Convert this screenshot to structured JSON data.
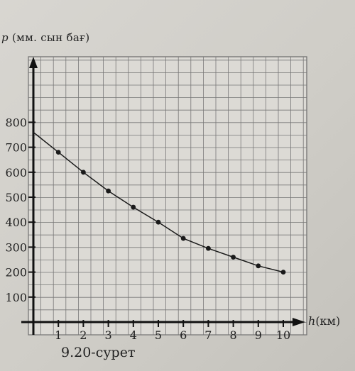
{
  "chart_data": {
    "type": "line",
    "ylabel_var": "p",
    "ylabel_unit": "(мм. сын бағ)",
    "xlabel_var": "h",
    "xlabel_unit": "(км)",
    "caption": "9.20-сурет",
    "x_ticks": [
      1,
      2,
      3,
      4,
      5,
      6,
      7,
      8,
      9,
      10
    ],
    "y_ticks": [
      100,
      200,
      300,
      400,
      500,
      600,
      700,
      800
    ],
    "xlim": [
      0,
      10
    ],
    "ylim": [
      0,
      800
    ],
    "grid": true,
    "series": [
      {
        "x": [
          0,
          1,
          2,
          3,
          4,
          5,
          6,
          7,
          8,
          9,
          10
        ],
        "y": [
          760,
          680,
          600,
          525,
          460,
          400,
          335,
          295,
          260,
          225,
          200
        ],
        "color": "#1a1a1a"
      }
    ]
  }
}
